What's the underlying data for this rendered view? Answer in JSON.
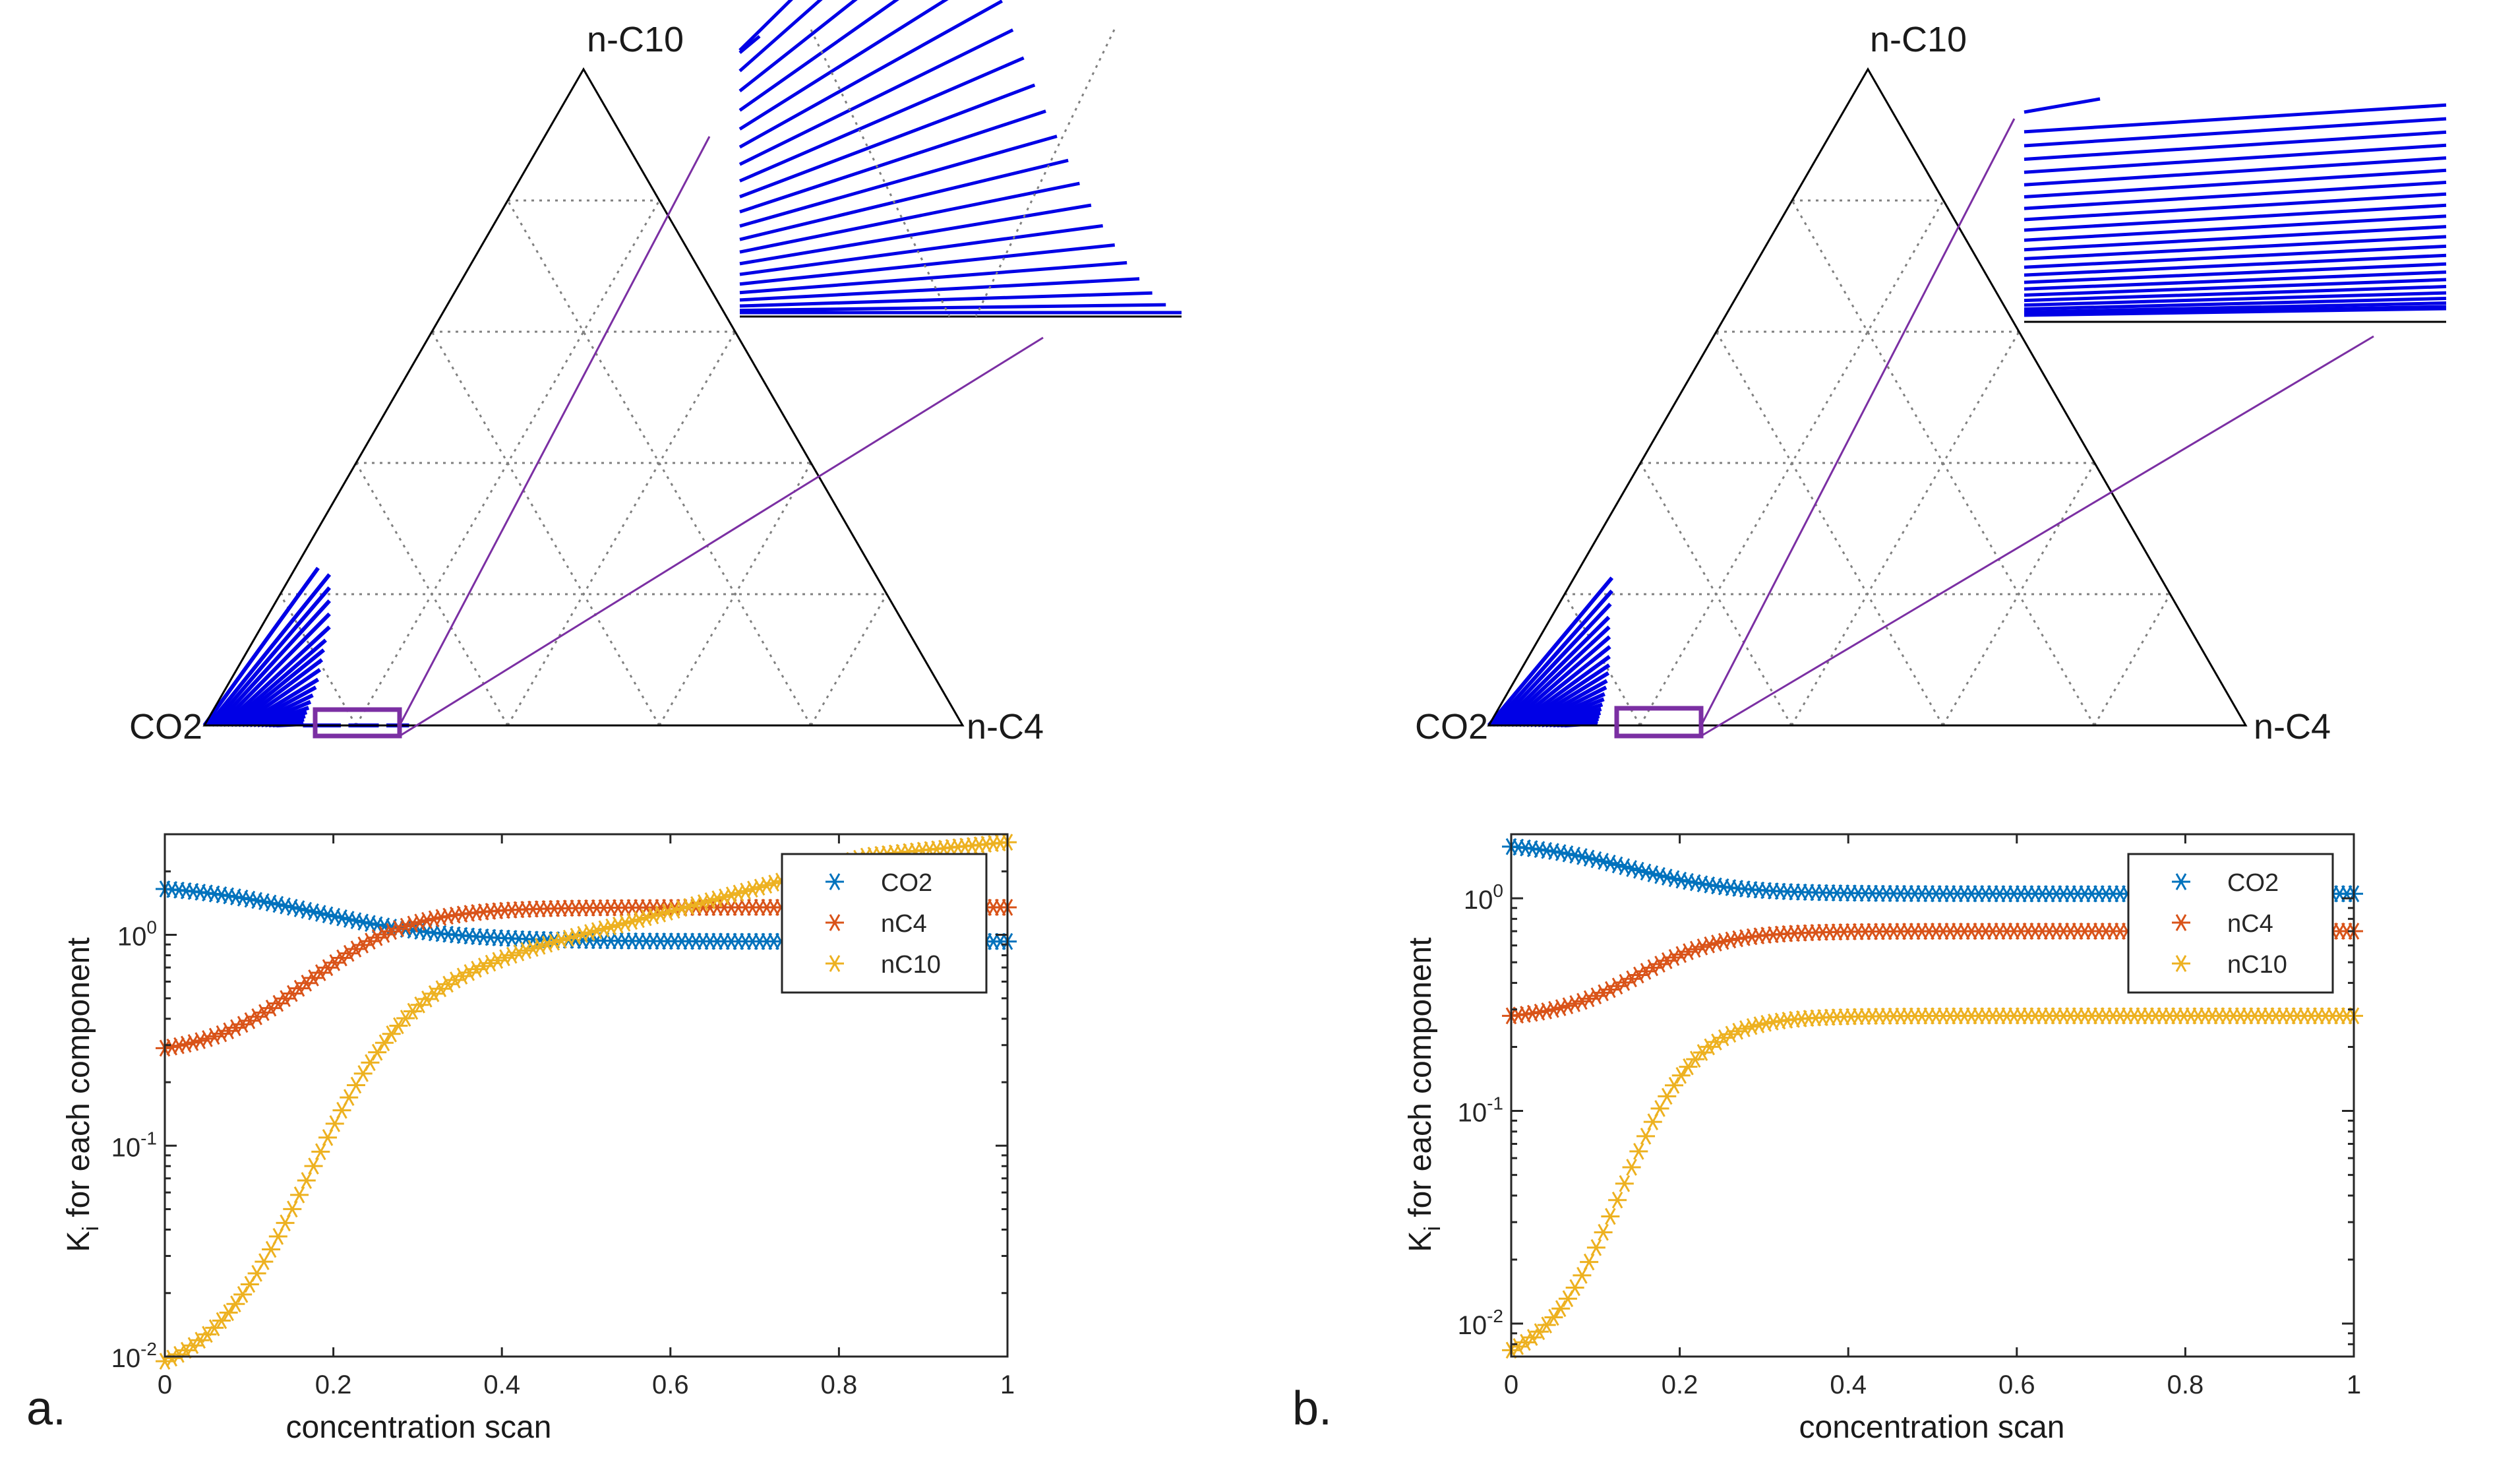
{
  "colors": {
    "axis": "#262626",
    "tie_line": "#0000e6",
    "zoom_guide": "#7b2fa3",
    "grid": "#808080",
    "legend_border": "#262626"
  },
  "chart_data": [
    {
      "panel": "a.",
      "type": "ternary",
      "vertices": {
        "left": "CO2",
        "right": "n-C4",
        "top": "n-C10"
      },
      "grid_divisions": 5,
      "description_of_marks": "blue tie-lines fanning from CO2 vertex; purple zoom box near the CO2-nC4 edge with magnified inset at top-right",
      "tie_lines_main": [
        [
          [
            0.0,
            0.0
          ],
          [
            0.03,
            0.24
          ]
        ],
        [
          [
            0.005,
            0.0
          ],
          [
            0.05,
            0.23
          ]
        ],
        [
          [
            0.01,
            0.0
          ],
          [
            0.06,
            0.21
          ]
        ],
        [
          [
            0.015,
            0.0
          ],
          [
            0.07,
            0.19
          ]
        ],
        [
          [
            0.02,
            0.0
          ],
          [
            0.08,
            0.17
          ]
        ],
        [
          [
            0.025,
            0.0
          ],
          [
            0.09,
            0.15
          ]
        ],
        [
          [
            0.03,
            0.0
          ],
          [
            0.095,
            0.13
          ]
        ],
        [
          [
            0.035,
            0.0
          ],
          [
            0.1,
            0.115
          ]
        ],
        [
          [
            0.04,
            0.0
          ],
          [
            0.105,
            0.1
          ]
        ],
        [
          [
            0.045,
            0.0
          ],
          [
            0.11,
            0.085
          ]
        ],
        [
          [
            0.05,
            0.0
          ],
          [
            0.115,
            0.07
          ]
        ],
        [
          [
            0.055,
            0.0
          ],
          [
            0.118,
            0.058
          ]
        ],
        [
          [
            0.06,
            0.0
          ],
          [
            0.12,
            0.046
          ]
        ],
        [
          [
            0.065,
            0.0
          ],
          [
            0.122,
            0.036
          ]
        ],
        [
          [
            0.07,
            0.0
          ],
          [
            0.124,
            0.027
          ]
        ],
        [
          [
            0.075,
            0.0
          ],
          [
            0.125,
            0.02
          ]
        ],
        [
          [
            0.08,
            0.0
          ],
          [
            0.126,
            0.014
          ]
        ],
        [
          [
            0.085,
            0.0
          ],
          [
            0.127,
            0.009
          ]
        ],
        [
          [
            0.09,
            0.0
          ],
          [
            0.128,
            0.005
          ]
        ],
        [
          [
            0.095,
            0.0
          ],
          [
            0.129,
            0.002
          ]
        ],
        [
          [
            0.13,
            0.0
          ],
          [
            0.18,
            0.0
          ]
        ],
        [
          [
            0.19,
            0.0
          ],
          [
            0.23,
            0.0
          ]
        ],
        [
          [
            0.24,
            0.0
          ],
          [
            0.27,
            0.0
          ]
        ]
      ]
    },
    {
      "panel": "a.",
      "type": "scatter",
      "xlabel": "concentration scan",
      "ylabel": "K_i for each component",
      "ylabel_main": "K",
      "ylabel_sub": "i",
      "ylabel_rest": "  for each component",
      "yscale": "log",
      "xlim": [
        0,
        1
      ],
      "ylim": [
        0.01,
        3
      ],
      "x_ticks": [
        "0",
        "0.2",
        "0.4",
        "0.6",
        "0.8",
        "1"
      ],
      "y_ticks": [
        {
          "base": "10",
          "exp": "-2"
        },
        {
          "base": "10",
          "exp": "-1"
        },
        {
          "base": "10",
          "exp": "0"
        }
      ],
      "legend": {
        "placement": "top-right",
        "entries": [
          "CO2",
          "nC4",
          "nC10"
        ]
      },
      "series": [
        {
          "name": "CO2",
          "color": "#0072bd",
          "start": 1.65,
          "end": 0.93,
          "mid": 0.18,
          "width": 0.08
        },
        {
          "name": "nC4",
          "color": "#d95319",
          "start": 0.29,
          "end": 1.35,
          "mid": 0.17,
          "width": 0.06
        },
        {
          "name": "nC10",
          "color": "#edb120",
          "start": 0.0095,
          "end": 2.75,
          "mid": 0.17,
          "width": 0.06,
          "lift": 0.3
        }
      ],
      "points_per_series": 120
    },
    {
      "panel": "b.",
      "type": "ternary",
      "vertices": {
        "left": "CO2",
        "right": "n-C4",
        "top": "n-C10"
      },
      "grid_divisions": 5,
      "description_of_marks": "blue tie-lines fanning from CO2 vertex; purple zoom box near the CO2-nC4 edge with magnified inset at top-right",
      "tie_lines_main": [
        [
          [
            0.0,
            0.0
          ],
          [
            0.05,
            0.225
          ]
        ],
        [
          [
            0.005,
            0.0
          ],
          [
            0.06,
            0.205
          ]
        ],
        [
          [
            0.01,
            0.0
          ],
          [
            0.068,
            0.185
          ]
        ],
        [
          [
            0.015,
            0.0
          ],
          [
            0.076,
            0.165
          ]
        ],
        [
          [
            0.02,
            0.0
          ],
          [
            0.084,
            0.15
          ]
        ],
        [
          [
            0.025,
            0.0
          ],
          [
            0.092,
            0.135
          ]
        ],
        [
          [
            0.03,
            0.0
          ],
          [
            0.1,
            0.12
          ]
        ],
        [
          [
            0.035,
            0.0
          ],
          [
            0.107,
            0.105
          ]
        ],
        [
          [
            0.04,
            0.0
          ],
          [
            0.113,
            0.092
          ]
        ],
        [
          [
            0.045,
            0.0
          ],
          [
            0.118,
            0.08
          ]
        ],
        [
          [
            0.05,
            0.0
          ],
          [
            0.122,
            0.068
          ]
        ],
        [
          [
            0.055,
            0.0
          ],
          [
            0.126,
            0.058
          ]
        ],
        [
          [
            0.06,
            0.0
          ],
          [
            0.129,
            0.048
          ]
        ],
        [
          [
            0.065,
            0.0
          ],
          [
            0.132,
            0.04
          ]
        ],
        [
          [
            0.07,
            0.0
          ],
          [
            0.134,
            0.032
          ]
        ],
        [
          [
            0.075,
            0.0
          ],
          [
            0.136,
            0.025
          ]
        ],
        [
          [
            0.08,
            0.0
          ],
          [
            0.138,
            0.019
          ]
        ],
        [
          [
            0.085,
            0.0
          ],
          [
            0.139,
            0.014
          ]
        ],
        [
          [
            0.09,
            0.0
          ],
          [
            0.14,
            0.01
          ]
        ],
        [
          [
            0.095,
            0.0
          ],
          [
            0.141,
            0.006
          ]
        ],
        [
          [
            0.1,
            0.0
          ],
          [
            0.142,
            0.003
          ]
        ]
      ]
    },
    {
      "panel": "b.",
      "type": "scatter",
      "xlabel": "concentration scan",
      "ylabel": "K_i for each component",
      "ylabel_main": "K",
      "ylabel_sub": "i",
      "ylabel_rest": "  for each component",
      "yscale": "log",
      "xlim": [
        0,
        1
      ],
      "ylim": [
        0.007,
        2
      ],
      "x_ticks": [
        "0",
        "0.2",
        "0.4",
        "0.6",
        "0.8",
        "1"
      ],
      "y_ticks": [
        {
          "base": "10",
          "exp": "-2"
        },
        {
          "base": "10",
          "exp": "-1"
        },
        {
          "base": "10",
          "exp": "0"
        }
      ],
      "legend": {
        "placement": "top-right",
        "entries": [
          "CO2",
          "nC4",
          "nC10"
        ]
      },
      "series": [
        {
          "name": "CO2",
          "color": "#0072bd",
          "start": 1.75,
          "end": 1.05,
          "mid": 0.14,
          "width": 0.06
        },
        {
          "name": "nC4",
          "color": "#d95319",
          "start": 0.28,
          "end": 0.7,
          "mid": 0.15,
          "width": 0.05
        },
        {
          "name": "nC10",
          "color": "#edb120",
          "start": 0.0075,
          "end": 0.28,
          "mid": 0.13,
          "width": 0.045
        }
      ],
      "points_per_series": 120
    }
  ]
}
